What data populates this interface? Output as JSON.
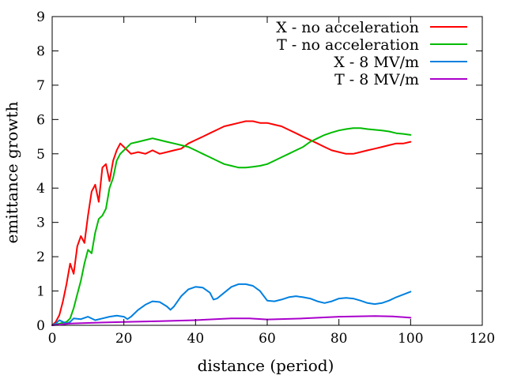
{
  "chart_data": {
    "type": "line",
    "title": "",
    "xlabel": "distance (period)",
    "ylabel": "emittance growth",
    "xlim": [
      0,
      120
    ],
    "ylim": [
      0,
      9
    ],
    "xticks": [
      0,
      20,
      40,
      60,
      80,
      100,
      120
    ],
    "yticks": [
      0,
      1,
      2,
      3,
      4,
      5,
      6,
      7,
      8,
      9
    ],
    "grid": false,
    "legend_position": "top-right",
    "series": [
      {
        "name": "X - no acceleration",
        "color": "#ff0000",
        "x": [
          0,
          1,
          2,
          3,
          4,
          5,
          6,
          7,
          8,
          9,
          10,
          11,
          12,
          13,
          14,
          15,
          16,
          17,
          18,
          19,
          20,
          22,
          24,
          26,
          28,
          30,
          32,
          34,
          36,
          38,
          40,
          42,
          44,
          46,
          48,
          50,
          52,
          54,
          56,
          58,
          60,
          62,
          64,
          66,
          68,
          70,
          72,
          74,
          76,
          78,
          80,
          82,
          84,
          86,
          88,
          90,
          92,
          94,
          96,
          98,
          100
        ],
        "y": [
          0.0,
          0.1,
          0.3,
          0.7,
          1.2,
          1.8,
          1.5,
          2.3,
          2.6,
          2.4,
          3.2,
          3.9,
          4.1,
          3.6,
          4.6,
          4.7,
          4.2,
          4.8,
          5.1,
          5.3,
          5.2,
          5.0,
          5.05,
          5.0,
          5.1,
          5.0,
          5.05,
          5.1,
          5.15,
          5.3,
          5.4,
          5.5,
          5.6,
          5.7,
          5.8,
          5.85,
          5.9,
          5.95,
          5.95,
          5.9,
          5.9,
          5.85,
          5.8,
          5.7,
          5.6,
          5.5,
          5.4,
          5.3,
          5.2,
          5.1,
          5.05,
          5.0,
          5.0,
          5.05,
          5.1,
          5.15,
          5.2,
          5.25,
          5.3,
          5.3,
          5.35
        ]
      },
      {
        "name": "T - no acceleration",
        "color": "#00bb00",
        "x": [
          0,
          2,
          4,
          5,
          6,
          7,
          8,
          9,
          10,
          11,
          12,
          13,
          14,
          15,
          16,
          17,
          18,
          19,
          20,
          22,
          24,
          26,
          28,
          30,
          32,
          34,
          36,
          38,
          40,
          42,
          44,
          46,
          48,
          50,
          52,
          54,
          56,
          58,
          60,
          62,
          64,
          66,
          68,
          70,
          72,
          74,
          76,
          78,
          80,
          82,
          84,
          86,
          88,
          90,
          92,
          94,
          96,
          98,
          100
        ],
        "y": [
          0.0,
          0.05,
          0.1,
          0.2,
          0.5,
          0.9,
          1.3,
          1.8,
          2.2,
          2.1,
          2.7,
          3.1,
          3.2,
          3.4,
          4.0,
          4.3,
          4.8,
          5.0,
          5.1,
          5.3,
          5.35,
          5.4,
          5.45,
          5.4,
          5.35,
          5.3,
          5.25,
          5.2,
          5.1,
          5.0,
          4.9,
          4.8,
          4.7,
          4.65,
          4.6,
          4.6,
          4.62,
          4.65,
          4.7,
          4.8,
          4.9,
          5.0,
          5.1,
          5.2,
          5.35,
          5.45,
          5.55,
          5.62,
          5.68,
          5.72,
          5.75,
          5.75,
          5.72,
          5.7,
          5.68,
          5.65,
          5.6,
          5.58,
          5.55
        ]
      },
      {
        "name": "X - 8 MV/m",
        "color": "#0080e0",
        "x": [
          0,
          1,
          2,
          3,
          4,
          5,
          6,
          8,
          10,
          12,
          14,
          16,
          18,
          20,
          21,
          22,
          24,
          26,
          28,
          30,
          32,
          33,
          34,
          36,
          38,
          40,
          42,
          44,
          45,
          46,
          48,
          50,
          52,
          54,
          56,
          58,
          60,
          62,
          64,
          66,
          68,
          70,
          72,
          74,
          76,
          78,
          80,
          82,
          84,
          86,
          88,
          90,
          92,
          94,
          96,
          98,
          100
        ],
        "y": [
          0.0,
          0.05,
          0.15,
          0.1,
          0.05,
          0.1,
          0.2,
          0.18,
          0.25,
          0.15,
          0.2,
          0.25,
          0.28,
          0.25,
          0.18,
          0.25,
          0.45,
          0.6,
          0.7,
          0.68,
          0.55,
          0.45,
          0.55,
          0.85,
          1.05,
          1.12,
          1.1,
          0.95,
          0.75,
          0.78,
          0.95,
          1.12,
          1.2,
          1.2,
          1.15,
          1.0,
          0.72,
          0.7,
          0.75,
          0.82,
          0.85,
          0.82,
          0.78,
          0.7,
          0.65,
          0.7,
          0.78,
          0.8,
          0.78,
          0.72,
          0.65,
          0.62,
          0.65,
          0.72,
          0.82,
          0.9,
          0.98
        ]
      },
      {
        "name": "T - 8 MV/m",
        "color": "#aa00cc",
        "x": [
          0,
          5,
          10,
          20,
          30,
          40,
          50,
          55,
          60,
          70,
          80,
          90,
          95,
          100
        ],
        "y": [
          0.0,
          0.05,
          0.07,
          0.1,
          0.12,
          0.15,
          0.2,
          0.2,
          0.17,
          0.2,
          0.25,
          0.27,
          0.26,
          0.22
        ]
      }
    ]
  }
}
